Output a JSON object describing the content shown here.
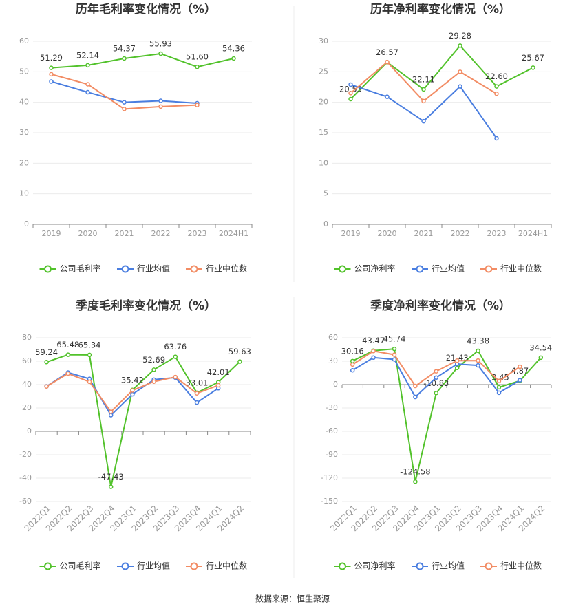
{
  "chart_data": [
    {
      "type": "line",
      "title": "历年毛利率变化情况（%）",
      "categories": [
        "2019",
        "2020",
        "2021",
        "2022",
        "2023",
        "2024H1"
      ],
      "ylim": [
        0,
        60
      ],
      "yticks": [
        0,
        10,
        20,
        30,
        40,
        50,
        60
      ],
      "grid": true,
      "legend": "bottom",
      "series": [
        {
          "name": "公司毛利率",
          "color": "#52c22b",
          "values": [
            51.29,
            52.14,
            54.37,
            55.93,
            51.6,
            54.36
          ],
          "value_labels": [
            "51.29",
            "52.14",
            "54.37",
            "55.93",
            "51.60",
            "54.36"
          ]
        },
        {
          "name": "行业均值",
          "color": "#4a7ee0",
          "values": [
            46.8,
            43.3,
            40.0,
            40.5,
            39.7,
            null
          ]
        },
        {
          "name": "行业中位数",
          "color": "#f28c64",
          "values": [
            49.2,
            45.9,
            37.8,
            38.6,
            39.1,
            null
          ]
        }
      ]
    },
    {
      "type": "line",
      "title": "历年净利率变化情况（%）",
      "categories": [
        "2019",
        "2020",
        "2021",
        "2022",
        "2023",
        "2024H1"
      ],
      "ylim": [
        0,
        30
      ],
      "yticks": [
        0,
        5,
        10,
        15,
        20,
        25,
        30
      ],
      "grid": true,
      "legend": "bottom",
      "series": [
        {
          "name": "公司净利率",
          "color": "#52c22b",
          "values": [
            20.53,
            26.57,
            22.11,
            29.28,
            22.6,
            25.67
          ],
          "value_labels": [
            "20.53",
            "26.57",
            "22.11",
            "29.28",
            "22.60",
            "25.67"
          ]
        },
        {
          "name": "行业均值",
          "color": "#4a7ee0",
          "values": [
            22.9,
            20.9,
            16.9,
            22.6,
            14.1,
            null
          ]
        },
        {
          "name": "行业中位数",
          "color": "#f28c64",
          "values": [
            21.5,
            26.6,
            20.2,
            25.0,
            21.4,
            null
          ]
        }
      ]
    },
    {
      "type": "line",
      "title": "季度毛利率变化情况（%）",
      "categories": [
        "2022Q1",
        "2022Q2",
        "2022Q3",
        "2022Q4",
        "2023Q1",
        "2023Q2",
        "2023Q3",
        "2023Q4",
        "2024Q1",
        "2024Q2"
      ],
      "ylim": [
        -60,
        80
      ],
      "yticks": [
        -60,
        -40,
        -20,
        0,
        20,
        40,
        60,
        80
      ],
      "grid": true,
      "legend": "bottom",
      "series": [
        {
          "name": "公司毛利率",
          "color": "#52c22b",
          "values": [
            59.24,
            65.48,
            65.34,
            -47.43,
            35.42,
            52.69,
            63.76,
            33.01,
            42.01,
            59.63
          ],
          "value_labels": [
            "59.24",
            "65.48",
            "65.34",
            "-47.43",
            "35.42",
            "52.69",
            "63.76",
            "33.01",
            "42.01",
            "59.63"
          ]
        },
        {
          "name": "行业均值",
          "color": "#4a7ee0",
          "values": [
            38.5,
            50.3,
            44.9,
            13.8,
            31.7,
            44.2,
            46.0,
            24.6,
            36.9,
            null
          ]
        },
        {
          "name": "行业中位数",
          "color": "#f28c64",
          "values": [
            38.4,
            49.4,
            42.4,
            16.8,
            35.0,
            42.5,
            46.5,
            32.5,
            39.4,
            null
          ]
        }
      ]
    },
    {
      "type": "line",
      "title": "季度净利率变化情况（%）",
      "categories": [
        "2022Q1",
        "2022Q2",
        "2022Q3",
        "2022Q4",
        "2023Q1",
        "2023Q2",
        "2023Q3",
        "2023Q4",
        "2024Q1",
        "2024Q2"
      ],
      "ylim": [
        -150,
        60
      ],
      "yticks": [
        -150,
        -120,
        -90,
        -60,
        -30,
        0,
        30,
        60
      ],
      "grid": true,
      "legend": "bottom",
      "series": [
        {
          "name": "公司净利率",
          "color": "#52c22b",
          "values": [
            30.16,
            43.47,
            45.74,
            -124.58,
            -10.83,
            21.43,
            43.38,
            -3.45,
            4.87,
            34.54
          ],
          "value_labels": [
            "30.16",
            "43.47",
            "45.74",
            "-124.58",
            "-10.83",
            "21.43",
            "43.38",
            "-3.45",
            "4.87",
            "34.54"
          ]
        },
        {
          "name": "行业均值",
          "color": "#4a7ee0",
          "values": [
            18.3,
            34.6,
            32.2,
            -15.9,
            9.0,
            26.3,
            24.6,
            -10.5,
            5.6,
            null
          ]
        },
        {
          "name": "行业中位数",
          "color": "#f28c64",
          "values": [
            25.7,
            43.0,
            38.3,
            -1.8,
            17.0,
            30.7,
            30.8,
            4.6,
            22.9,
            null
          ]
        }
      ]
    }
  ],
  "source": "数据来源：恒生聚源"
}
